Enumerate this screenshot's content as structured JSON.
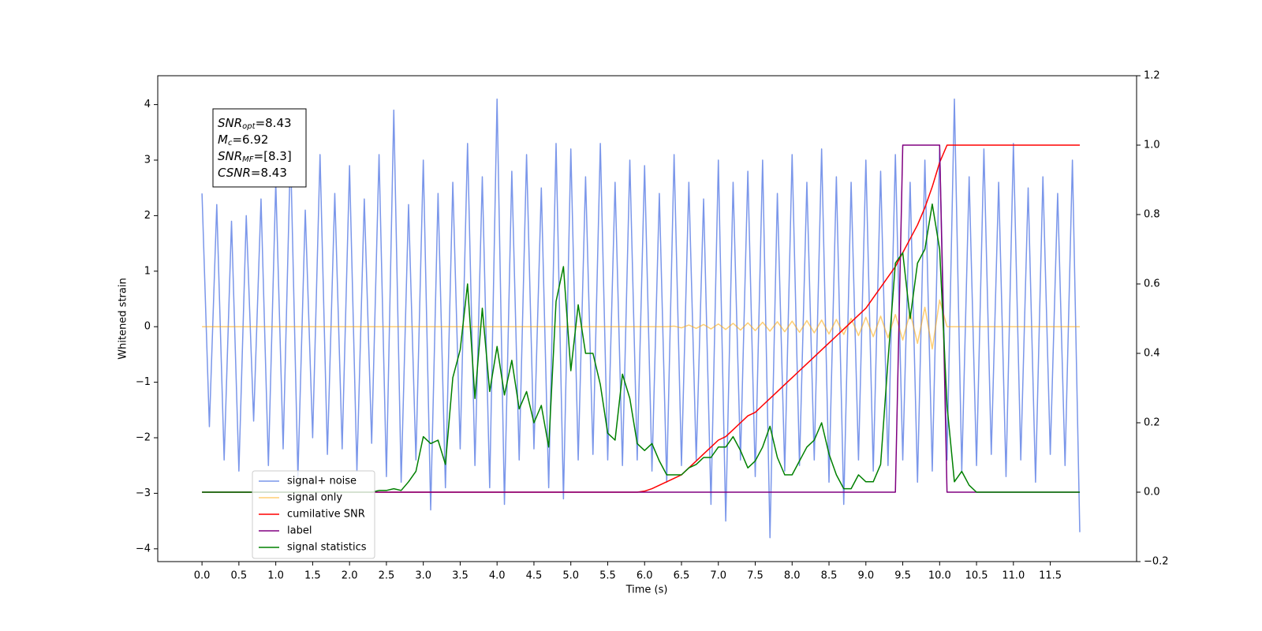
{
  "chart_data": {
    "type": "line",
    "xlabel": "Time (s)",
    "ylabel": "Whitened strain",
    "annotation": [
      {
        "symbol": "SNR",
        "subscript": "opt",
        "text": "=8.43"
      },
      {
        "symbol": "M",
        "subscript": "c",
        "text": "=6.92"
      },
      {
        "symbol": "SNR",
        "subscript": "MF",
        "text": "=[8.3]"
      },
      {
        "symbol": "CSNR",
        "text": "=8.43"
      }
    ],
    "xlim": [
      -0.6,
      12.67
    ],
    "xticks": [
      {
        "value": 0,
        "label": "0.0"
      },
      0.5,
      {
        "value": 1,
        "label": "1.0"
      },
      1.5,
      {
        "value": 2,
        "label": "2.0"
      },
      2.5,
      {
        "value": 3,
        "label": "3.0"
      },
      3.5,
      {
        "value": 4,
        "label": "4.0"
      },
      4.5,
      {
        "value": 5,
        "label": "5.0"
      },
      5.5,
      {
        "value": 6,
        "label": "6.0"
      },
      6.5,
      {
        "value": 7,
        "label": "7.0"
      },
      7.5,
      {
        "value": 8,
        "label": "8.0"
      },
      8.5,
      {
        "value": 9,
        "label": "9.0"
      },
      9.5,
      {
        "value": 10,
        "label": "10.0"
      },
      10.5,
      {
        "value": 11,
        "label": "11.0"
      },
      11.5
    ],
    "ylim": [
      -4.23,
      4.52
    ],
    "yticks": [
      {
        "value": -4,
        "label": "−4"
      },
      {
        "value": -3,
        "label": "−3"
      },
      {
        "value": -2,
        "label": "−2"
      },
      {
        "value": -1,
        "label": "−1"
      },
      0,
      1,
      2,
      3,
      4
    ],
    "y2lim": [
      -0.2,
      1.2
    ],
    "y2ticks": [
      {
        "value": -0.2,
        "label": "−0.2"
      },
      {
        "value": 0,
        "label": "0.0"
      },
      0.2,
      0.4,
      0.6,
      0.8,
      {
        "value": 1,
        "label": "1.0"
      },
      1.2
    ],
    "legend": "lower left",
    "x": [
      0,
      0.1,
      0.2,
      0.3,
      0.4,
      0.5,
      0.6,
      0.7,
      0.8,
      0.9,
      1,
      1.1,
      1.2,
      1.3,
      1.4,
      1.5,
      1.6,
      1.7,
      1.8,
      1.9,
      2,
      2.1,
      2.2,
      2.3,
      2.4,
      2.5,
      2.6,
      2.7,
      2.8,
      2.9,
      3,
      3.1,
      3.2,
      3.3,
      3.4,
      3.5,
      3.6,
      3.7,
      3.8,
      3.9,
      4,
      4.1,
      4.2,
      4.3,
      4.4,
      4.5,
      4.6,
      4.7,
      4.8,
      4.9,
      5,
      5.1,
      5.2,
      5.3,
      5.4,
      5.5,
      5.6,
      5.7,
      5.8,
      5.9,
      6,
      6.1,
      6.2,
      6.3,
      6.4,
      6.5,
      6.6,
      6.7,
      6.8,
      6.9,
      7,
      7.1,
      7.2,
      7.3,
      7.4,
      7.5,
      7.6,
      7.7,
      7.8,
      7.9,
      8,
      8.1,
      8.2,
      8.3,
      8.4,
      8.5,
      8.6,
      8.7,
      8.8,
      8.9,
      9,
      9.1,
      9.2,
      9.3,
      9.4,
      9.5,
      9.6,
      9.7,
      9.8,
      9.9,
      10,
      10.1,
      10.2,
      10.3,
      10.4,
      10.5,
      10.6,
      10.7,
      10.8,
      10.9,
      11,
      11.1,
      11.2,
      11.3,
      11.4,
      11.5,
      11.6,
      11.7,
      11.8,
      11.9
    ],
    "series": [
      {
        "name": "signal+ noise",
        "color": "#4169e1",
        "alpha": 0.7,
        "axis": "y",
        "values": [
          2.4,
          -1.8,
          2.2,
          -2.4,
          1.9,
          -2.6,
          2.0,
          -1.7,
          2.3,
          -2.5,
          2.6,
          -2.2,
          3.2,
          -2.7,
          2.1,
          -2.0,
          3.1,
          -2.3,
          2.4,
          -2.2,
          2.9,
          -2.6,
          2.3,
          -2.1,
          3.1,
          -2.7,
          3.9,
          -2.8,
          2.2,
          -2.4,
          3.0,
          -3.3,
          2.4,
          -2.9,
          2.6,
          -2.2,
          3.3,
          -2.5,
          2.7,
          -2.9,
          4.1,
          -3.2,
          2.8,
          -2.4,
          3.1,
          -2.2,
          2.5,
          -2.9,
          3.3,
          -3.1,
          3.2,
          -2.4,
          2.7,
          -2.3,
          3.3,
          -2.4,
          2.6,
          -2.5,
          3.0,
          -2.4,
          2.9,
          -2.6,
          2.4,
          -2.8,
          3.1,
          -2.5,
          2.6,
          -2.4,
          2.3,
          -3.2,
          3.0,
          -3.5,
          2.6,
          -2.4,
          2.8,
          -2.7,
          3.0,
          -3.8,
          2.4,
          -2.6,
          3.1,
          -2.5,
          2.6,
          -2.4,
          3.2,
          -2.8,
          2.7,
          -3.2,
          2.6,
          -2.4,
          3.0,
          -2.6,
          2.8,
          -2.5,
          3.1,
          -2.4,
          2.6,
          -2.8,
          3.0,
          -2.6,
          3.2,
          -2.4,
          4.1,
          -2.6,
          2.7,
          -2.5,
          3.2,
          -2.3,
          2.6,
          -2.7,
          3.3,
          -2.4,
          2.5,
          -2.8,
          2.7,
          -2.3,
          2.4,
          -2.5,
          3.0,
          -3.7
        ]
      },
      {
        "name": "signal only",
        "color": "#ffa500",
        "alpha": 0.55,
        "axis": "y",
        "values": [
          0,
          0,
          0,
          0,
          0,
          0,
          0,
          0,
          0,
          0,
          0,
          0,
          0,
          0,
          0,
          0,
          0,
          0,
          0,
          0,
          0,
          0,
          0,
          0,
          0,
          0,
          0,
          0,
          0,
          0,
          0,
          0,
          0,
          0,
          0,
          0,
          0,
          0,
          0,
          0,
          0,
          0,
          0,
          0,
          0,
          0,
          0,
          0,
          0,
          0,
          0,
          0,
          0,
          0,
          0,
          0,
          0,
          0,
          0,
          0,
          0,
          0,
          0,
          0,
          0.01,
          -0.02,
          0.03,
          -0.03,
          0.04,
          -0.04,
          0.05,
          -0.05,
          0.06,
          -0.06,
          0.07,
          -0.07,
          0.08,
          -0.08,
          0.09,
          -0.09,
          0.1,
          -0.1,
          0.11,
          -0.11,
          0.12,
          -0.13,
          0.13,
          -0.14,
          0.15,
          -0.16,
          0.17,
          -0.18,
          0.19,
          -0.2,
          0.22,
          -0.24,
          0.26,
          -0.3,
          0.35,
          -0.4,
          0.48,
          0,
          0,
          0,
          0,
          0,
          0,
          0,
          0,
          0,
          0,
          0,
          0,
          0,
          0,
          0,
          0,
          0,
          0,
          0
        ]
      },
      {
        "name": "cumilative SNR",
        "color": "#ff0000",
        "alpha": 1,
        "axis": "y2",
        "values": [
          0,
          0,
          0,
          0,
          0,
          0,
          0,
          0,
          0,
          0,
          0,
          0,
          0,
          0,
          0,
          0,
          0,
          0,
          0,
          0,
          0,
          0,
          0,
          0,
          0,
          0,
          0,
          0,
          0,
          0,
          0,
          0,
          0,
          0,
          0,
          0,
          0,
          0,
          0,
          0,
          0,
          0,
          0,
          0,
          0,
          0,
          0,
          0,
          0,
          0,
          0,
          0,
          0,
          0,
          0,
          0,
          0,
          0,
          0,
          0,
          0.003,
          0.01,
          0.02,
          0.03,
          0.04,
          0.05,
          0.07,
          0.09,
          0.11,
          0.13,
          0.15,
          0.16,
          0.18,
          0.2,
          0.22,
          0.23,
          0.25,
          0.27,
          0.29,
          0.31,
          0.33,
          0.35,
          0.37,
          0.39,
          0.41,
          0.43,
          0.45,
          0.47,
          0.49,
          0.51,
          0.53,
          0.56,
          0.59,
          0.62,
          0.65,
          0.69,
          0.73,
          0.77,
          0.82,
          0.88,
          0.95,
          1,
          1,
          1,
          1,
          1,
          1,
          1,
          1,
          1,
          1,
          1,
          1,
          1,
          1,
          1,
          1,
          1,
          1,
          1
        ]
      },
      {
        "name": "label",
        "color": "#800080",
        "alpha": 1,
        "axis": "y2",
        "values": [
          0,
          0,
          0,
          0,
          0,
          0,
          0,
          0,
          0,
          0,
          0,
          0,
          0,
          0,
          0,
          0,
          0,
          0,
          0,
          0,
          0,
          0,
          0,
          0,
          0,
          0,
          0,
          0,
          0,
          0,
          0,
          0,
          0,
          0,
          0,
          0,
          0,
          0,
          0,
          0,
          0,
          0,
          0,
          0,
          0,
          0,
          0,
          0,
          0,
          0,
          0,
          0,
          0,
          0,
          0,
          0,
          0,
          0,
          0,
          0,
          0,
          0,
          0,
          0,
          0,
          0,
          0,
          0,
          0,
          0,
          0,
          0,
          0,
          0,
          0,
          0,
          0,
          0,
          0,
          0,
          0,
          0,
          0,
          0,
          0,
          0,
          0,
          0,
          0,
          0,
          0,
          0,
          0,
          0,
          0,
          1,
          1,
          1,
          1,
          1,
          1,
          0,
          0,
          0,
          0,
          0,
          0,
          0,
          0,
          0,
          0,
          0,
          0,
          0,
          0,
          0,
          0,
          0,
          0,
          0
        ]
      },
      {
        "name": "signal statistics",
        "color": "#008000",
        "alpha": 1,
        "axis": "y2",
        "values": [
          0,
          0,
          0,
          0,
          0,
          0,
          0,
          0,
          0,
          0,
          0,
          0,
          0,
          0,
          0,
          0,
          0,
          0,
          0,
          0,
          0,
          0,
          0,
          0,
          0.005,
          0.005,
          0.01,
          0.005,
          0.03,
          0.06,
          0.16,
          0.14,
          0.15,
          0.08,
          0.33,
          0.41,
          0.6,
          0.27,
          0.53,
          0.29,
          0.42,
          0.28,
          0.38,
          0.24,
          0.29,
          0.2,
          0.25,
          0.13,
          0.55,
          0.65,
          0.35,
          0.54,
          0.4,
          0.4,
          0.31,
          0.17,
          0.15,
          0.34,
          0.27,
          0.14,
          0.12,
          0.14,
          0.09,
          0.05,
          0.05,
          0.05,
          0.07,
          0.08,
          0.1,
          0.1,
          0.13,
          0.13,
          0.16,
          0.12,
          0.07,
          0.09,
          0.13,
          0.19,
          0.1,
          0.05,
          0.05,
          0.09,
          0.13,
          0.15,
          0.2,
          0.11,
          0.05,
          0.01,
          0.01,
          0.05,
          0.03,
          0.03,
          0.08,
          0.38,
          0.66,
          0.69,
          0.5,
          0.66,
          0.7,
          0.83,
          0.7,
          0.25,
          0.03,
          0.06,
          0.02,
          0,
          0,
          0,
          0,
          0,
          0,
          0,
          0,
          0,
          0,
          0,
          0,
          0,
          0,
          0
        ]
      }
    ]
  }
}
